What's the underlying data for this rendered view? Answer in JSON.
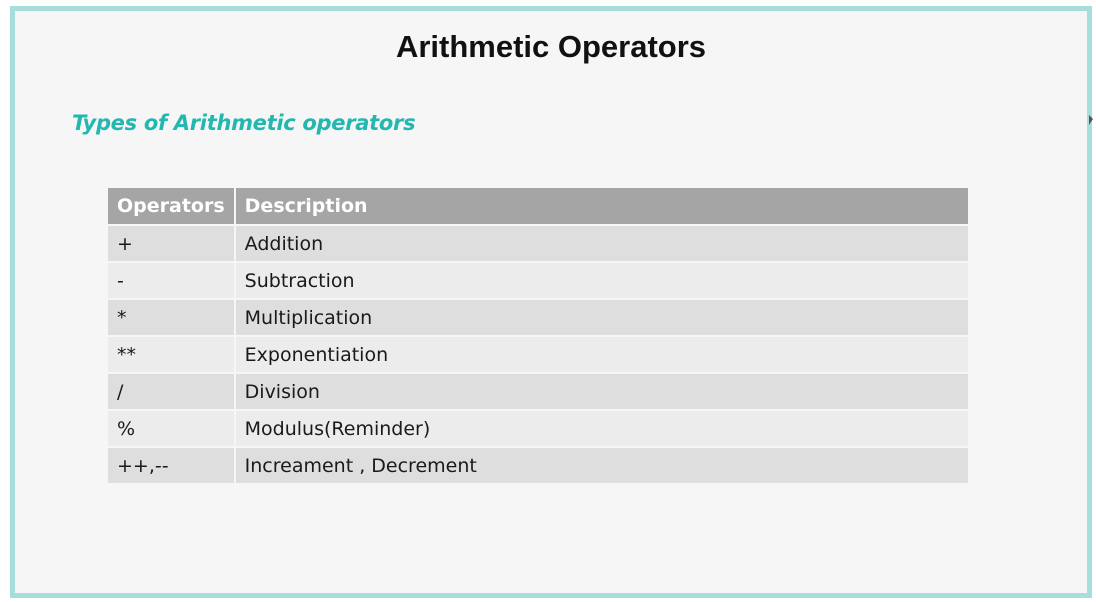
{
  "slide": {
    "title": "Arithmetic Operators",
    "subtitle": "Types of Arithmetic operators"
  },
  "table": {
    "headers": [
      "Operators",
      "Description"
    ],
    "rows": [
      {
        "operator": "+",
        "description": "Addition"
      },
      {
        "operator": "-",
        "description": "Subtraction"
      },
      {
        "operator": "*",
        "description": "Multiplication"
      },
      {
        "operator": "**",
        "description": "Exponentiation"
      },
      {
        "operator": "/",
        "description": "Division"
      },
      {
        "operator": "%",
        "description": "Modulus(Reminder)"
      },
      {
        "operator": "++,--",
        "description": "Increament , Decrement"
      }
    ]
  },
  "colors": {
    "border": "#a6dedb",
    "subtitle": "#22b8b0",
    "header_bg": "#a5a5a5"
  }
}
